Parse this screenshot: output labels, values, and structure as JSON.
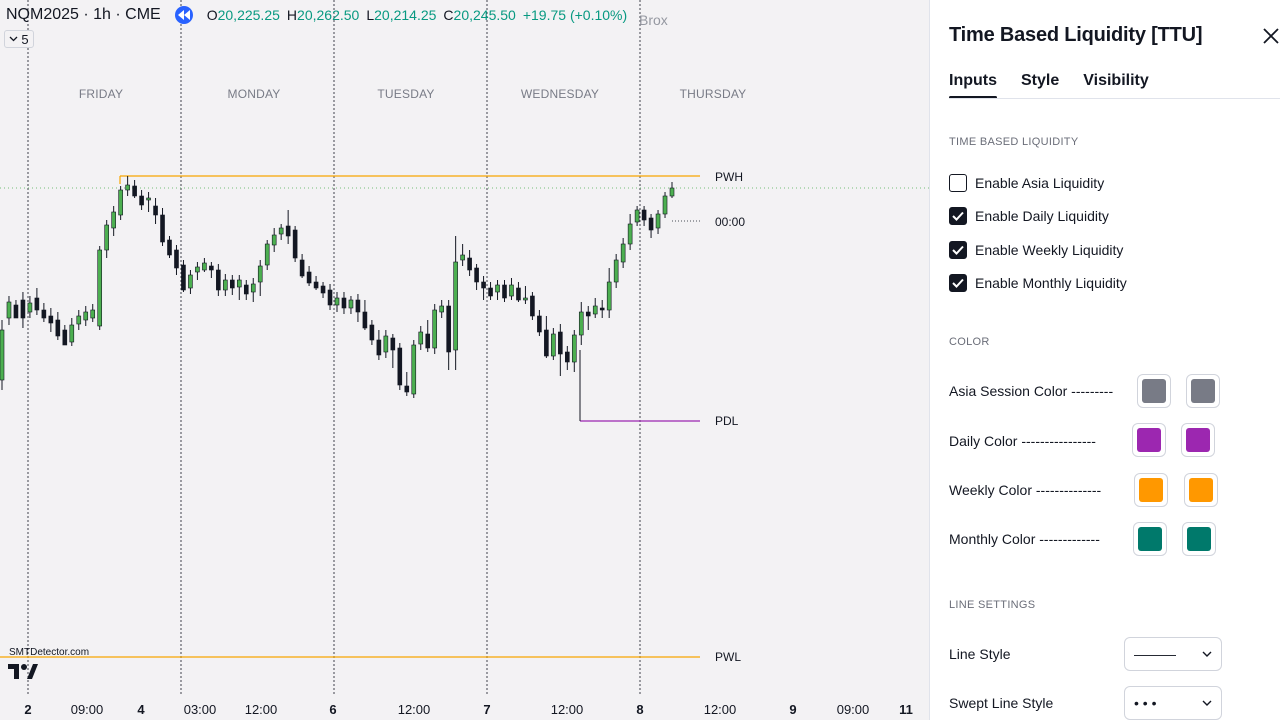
{
  "chart": {
    "symbol": "NQM2025 · 1h · CME",
    "ohlc": [
      {
        "k": "O",
        "v": "20,225.25"
      },
      {
        "k": "H",
        "v": "20,262.50"
      },
      {
        "k": "L",
        "v": "20,214.25"
      },
      {
        "k": "C",
        "v": "20,245.50"
      }
    ],
    "change": "+19.75 (+0.10%)",
    "indicator_tag": "Brox",
    "collapse_count": "5",
    "days": [
      "FRIDAY",
      "MONDAY",
      "TUESDAY",
      "WEDNESDAY",
      "THURSDAY"
    ],
    "levels": {
      "pwh": "PWH",
      "time_marker": "00:00",
      "pdl": "PDL",
      "pwl": "PWL"
    },
    "x_axis": [
      {
        "t": "2",
        "bold": true
      },
      {
        "t": "09:00",
        "bold": false
      },
      {
        "t": "4",
        "bold": true
      },
      {
        "t": "03:00",
        "bold": false
      },
      {
        "t": "12:00",
        "bold": false
      },
      {
        "t": "6",
        "bold": true
      },
      {
        "t": "12:00",
        "bold": false
      },
      {
        "t": "7",
        "bold": true
      },
      {
        "t": "12:00",
        "bold": false
      },
      {
        "t": "8",
        "bold": true
      },
      {
        "t": "12:00",
        "bold": false
      },
      {
        "t": "9",
        "bold": true
      },
      {
        "t": "09:00",
        "bold": false
      },
      {
        "t": "11",
        "bold": true
      }
    ],
    "watermark": "SMTDetector.com",
    "colors": {
      "up": "#4caf50",
      "down": "#131722",
      "pwh": "#f7a600",
      "pdl": "#9c27b0",
      "separator": "#131722"
    }
  },
  "panel": {
    "title": "Time Based Liquidity [TTU]",
    "tabs": [
      "Inputs",
      "Style",
      "Visibility"
    ],
    "active_tab": "Inputs",
    "sections": {
      "liquidity": "TIME BASED LIQUIDITY",
      "color": "COLOR",
      "line": "LINE SETTINGS"
    },
    "checkboxes": [
      {
        "label": "Enable Asia Liquidity",
        "checked": false
      },
      {
        "label": "Enable Daily Liquidity",
        "checked": true
      },
      {
        "label": "Enable Weekly Liquidity",
        "checked": true
      },
      {
        "label": "Enable Monthly Liquidity",
        "checked": true
      }
    ],
    "colors": [
      {
        "label": "Asia Session Color ---------",
        "c1": "#787b86",
        "c2": "#787b86"
      },
      {
        "label": "Daily Color ----------------",
        "c1": "#9c27b0",
        "c2": "#9c27b0"
      },
      {
        "label": "Weekly Color --------------",
        "c1": "#ff9800",
        "c2": "#ff9800"
      },
      {
        "label": "Monthly Color -------------",
        "c1": "#00796b",
        "c2": "#00796b"
      }
    ],
    "line_settings": [
      {
        "label": "Line Style",
        "value": "———"
      },
      {
        "label": "Swept Line Style",
        "value": "• • •"
      }
    ]
  }
}
